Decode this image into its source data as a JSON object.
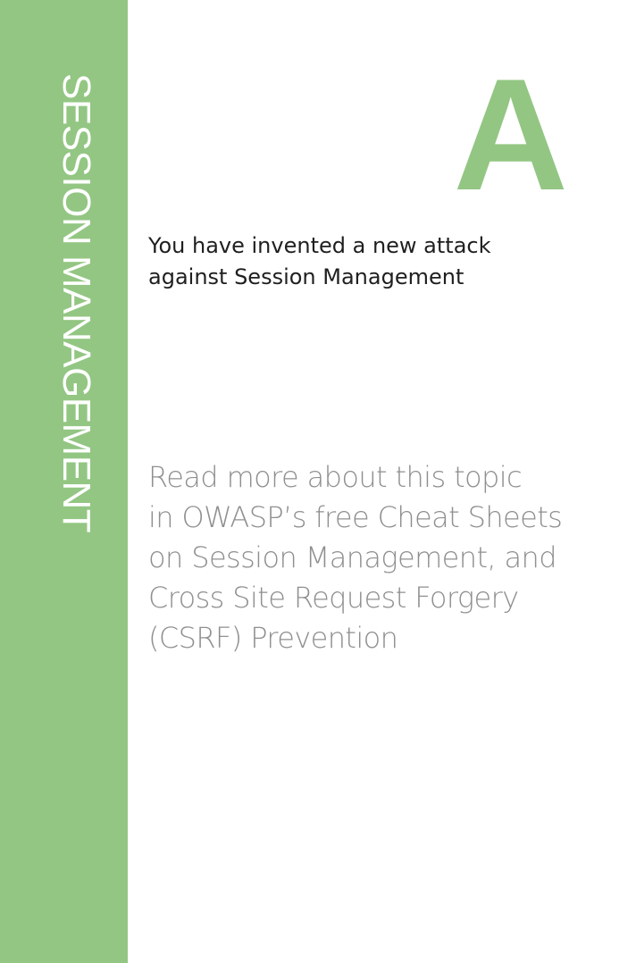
{
  "card": {
    "suit": "SESSION MANAGEMENT",
    "rank": "A",
    "description_lines": [
      "You have invented a new attack",
      "against Session Management"
    ],
    "read_more_lines": [
      "Read more about this topic",
      "in OWASP’s free Cheat Sheets",
      "on Session Management, and",
      "Cross Site Request Forgery",
      "(CSRF) Prevention"
    ]
  },
  "colors": {
    "accent": "#93c683",
    "description_text": "#1f1f1f",
    "read_more_text": "#8f8f8f",
    "background": "#ffffff"
  }
}
